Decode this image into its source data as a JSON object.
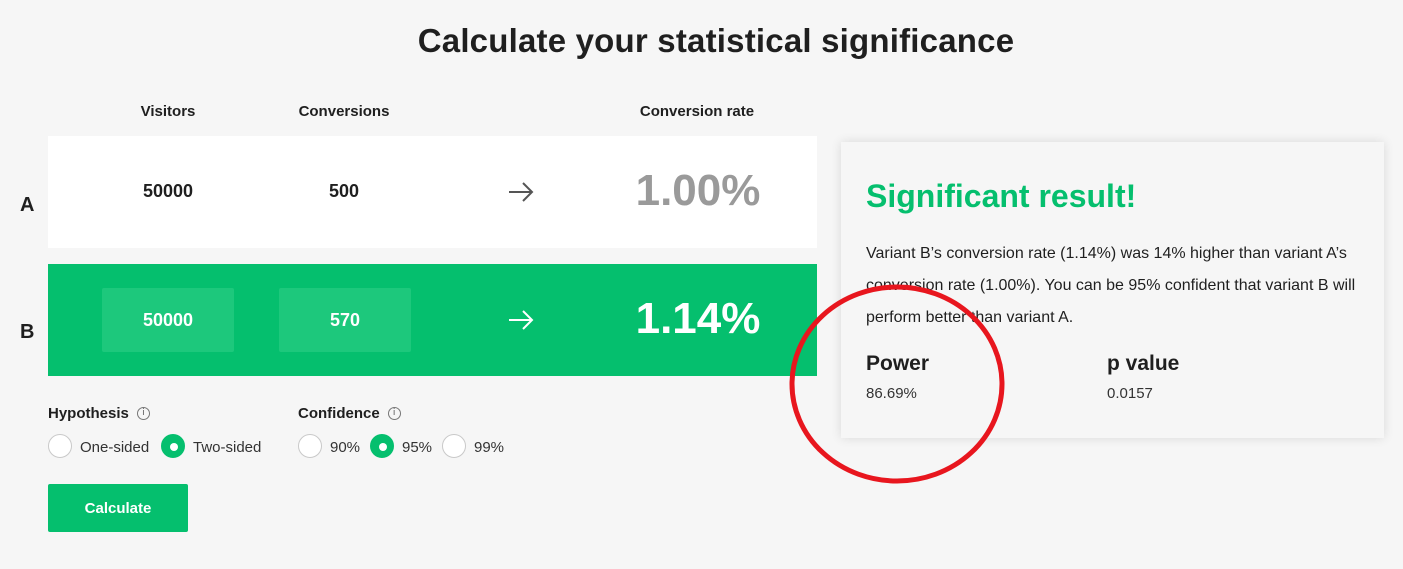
{
  "page": {
    "title": "Calculate your statistical significance"
  },
  "columns": {
    "visitors": "Visitors",
    "conversions": "Conversions",
    "conversion_rate": "Conversion rate"
  },
  "variants": {
    "a": {
      "label": "A",
      "visitors": "50000",
      "conversions": "500",
      "rate": "1.00%"
    },
    "b": {
      "label": "B",
      "visitors": "50000",
      "conversions": "570",
      "rate": "1.14%"
    }
  },
  "hypothesis": {
    "label": "Hypothesis",
    "info_icon": "info-icon",
    "options": [
      "One-sided",
      "Two-sided"
    ],
    "selected": "Two-sided"
  },
  "confidence": {
    "label": "Confidence",
    "info_icon": "info-icon",
    "options": [
      "90%",
      "95%",
      "99%"
    ],
    "selected": "95%"
  },
  "actions": {
    "calculate_label": "Calculate"
  },
  "result": {
    "title": "Significant result!",
    "description": "Variant B’s conversion rate (1.14%) was 14% higher than variant A’s conversion rate (1.00%). You can be 95% confident that variant B will perform better than variant A.",
    "power_label": "Power",
    "power_value": "86.69%",
    "p_value_label": "p value",
    "p_value": "0.0157"
  },
  "colors": {
    "accent": "#05bf6e",
    "annotation": "#e8161e"
  }
}
